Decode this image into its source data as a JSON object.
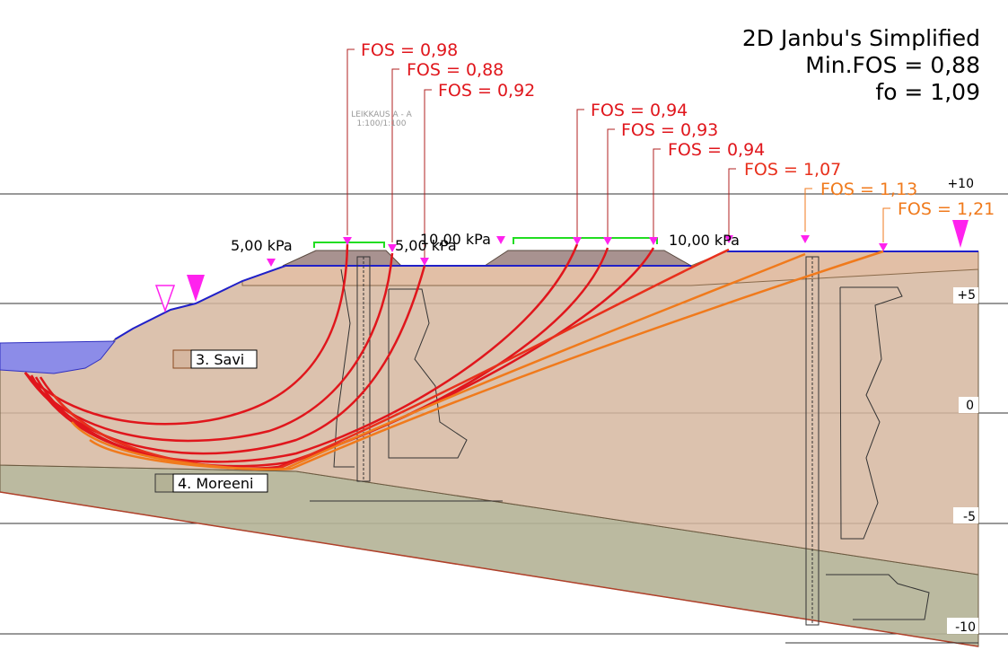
{
  "title": {
    "lines": [
      "2D Janbu's Simplified",
      "Min.FOS = 0,88",
      "fo = 1,09"
    ]
  },
  "fos_labels": [
    "FOS = 0,98",
    "FOS = 0,88",
    "FOS = 0,92",
    "FOS = 0,94",
    "FOS = 0,93",
    "FOS = 0,94",
    "FOS = 1,07",
    "FOS = 1,13",
    "FOS = 1,21"
  ],
  "loads": [
    "5,00 kPa",
    "5,00 kPa",
    "10,00 kPa",
    "10,00 kPa"
  ],
  "elevations": [
    "+10",
    "+5",
    "0",
    "-5",
    "-10"
  ],
  "layers": [
    "3. Savi",
    "4. Moreeni"
  ],
  "notes": [
    "LEIKKAUS A - A",
    "1:100/1:100"
  ]
}
